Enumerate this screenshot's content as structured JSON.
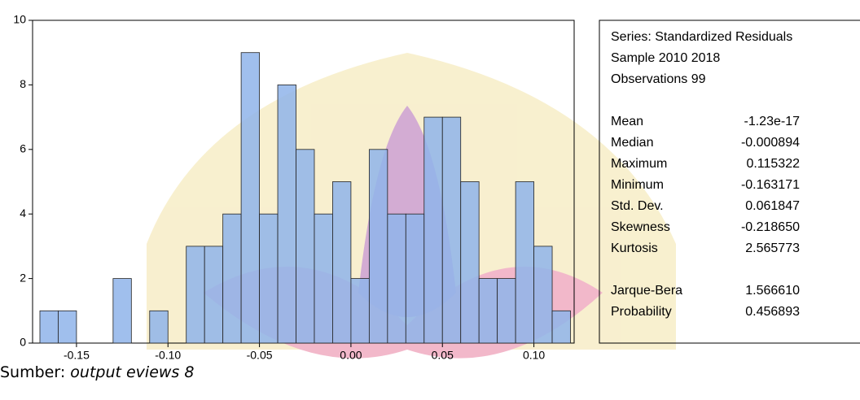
{
  "chart_data": {
    "type": "histogram",
    "bins": [
      -0.17,
      -0.16,
      -0.15,
      -0.14,
      -0.13,
      -0.12,
      -0.11,
      -0.1,
      -0.09,
      -0.08,
      -0.07,
      -0.06,
      -0.05,
      -0.04,
      -0.03,
      -0.02,
      -0.01,
      0.0,
      0.01,
      0.02,
      0.03,
      0.04,
      0.05,
      0.06,
      0.07,
      0.08,
      0.09,
      0.1,
      0.11,
      0.12
    ],
    "values": [
      1,
      1,
      0,
      0,
      2,
      0,
      1,
      0,
      3,
      3,
      4,
      9,
      4,
      8,
      6,
      4,
      5,
      2,
      6,
      4,
      4,
      7,
      7,
      5,
      2,
      2,
      5,
      3,
      1
    ],
    "color": "#8fb4ea",
    "xlim": [
      -0.174,
      0.122
    ],
    "xticks": [
      -0.15,
      {
        "value": -0.1,
        "label": "-0.10"
      },
      -0.05,
      {
        "value": 0,
        "label": "0.00"
      },
      0.05,
      {
        "value": 0.1,
        "label": "0.10"
      }
    ],
    "ylim": [
      0,
      10
    ],
    "yticks": [
      0,
      2,
      4,
      6,
      8,
      10
    ],
    "stats_header": [
      "Series: Standardized Residuals",
      "Sample 2010 2018",
      "Observations 99"
    ],
    "stats": [
      {
        "label": "Mean",
        "value": "-1.23e-17"
      },
      {
        "label": "Median",
        "value": "-0.000894"
      },
      {
        "label": "Maximum",
        "value": "0.115322"
      },
      {
        "label": "Minimum",
        "value": "-0.163171"
      },
      {
        "label": "Std. Dev.",
        "value": "0.061847"
      },
      {
        "label": "Skewness",
        "value": "-0.218650"
      },
      {
        "label": "Kurtosis",
        "value": "2.565773"
      }
    ],
    "tests": [
      {
        "label": "Jarque-Bera",
        "value": "1.566610"
      },
      {
        "label": "Probability",
        "value": "0.456893"
      }
    ]
  },
  "caption": {
    "prefix": "Sumber: ",
    "source": "output eviews 8"
  }
}
